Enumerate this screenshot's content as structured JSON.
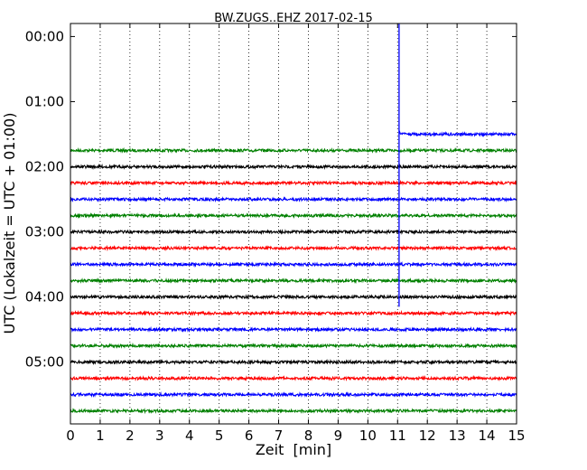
{
  "chart_data": {
    "type": "line",
    "title": "BW.ZUGS..EHZ 2017-02-15",
    "xlabel": "Zeit  [min]",
    "ylabel": "UTC (Lokalzeit = UTC + 01:00)",
    "xlim": [
      0,
      15
    ],
    "ylim_hours": [
      5.95,
      -0.2
    ],
    "x_ticks": [
      0,
      1,
      2,
      3,
      4,
      5,
      6,
      7,
      8,
      9,
      10,
      11,
      12,
      13,
      14,
      15
    ],
    "x_tick_labels": [
      "0",
      "1",
      "2",
      "3",
      "4",
      "5",
      "6",
      "7",
      "8",
      "9",
      "10",
      "11",
      "12",
      "13",
      "14",
      "15"
    ],
    "y_ticks": [
      "00:00",
      "01:00",
      "02:00",
      "03:00",
      "04:00",
      "05:00"
    ],
    "grid": "vertical-dotted",
    "colors": {
      "green": "#008000",
      "black": "#000000",
      "red": "#ff0000",
      "blue": "#0000ff"
    },
    "partial_trace": {
      "row_hour": 1.5,
      "x_start": 11.1,
      "x_end": 15,
      "color": "blue"
    },
    "traces": [
      {
        "row_hour": 1.75,
        "color": "green"
      },
      {
        "row_hour": 2.0,
        "color": "black"
      },
      {
        "row_hour": 2.25,
        "color": "red"
      },
      {
        "row_hour": 2.5,
        "color": "blue"
      },
      {
        "row_hour": 2.75,
        "color": "green"
      },
      {
        "row_hour": 3.0,
        "color": "black"
      },
      {
        "row_hour": 3.25,
        "color": "red"
      },
      {
        "row_hour": 3.5,
        "color": "blue"
      },
      {
        "row_hour": 3.75,
        "color": "green"
      },
      {
        "row_hour": 4.0,
        "color": "black"
      },
      {
        "row_hour": 4.25,
        "color": "red"
      },
      {
        "row_hour": 4.5,
        "color": "blue"
      },
      {
        "row_hour": 4.75,
        "color": "green"
      },
      {
        "row_hour": 5.0,
        "color": "black"
      },
      {
        "row_hour": 5.25,
        "color": "red"
      },
      {
        "row_hour": 5.5,
        "color": "blue"
      },
      {
        "row_hour": 5.75,
        "color": "green"
      }
    ],
    "event": {
      "x": 11.05,
      "hour_top": -0.2,
      "hour_bottom": 4.15,
      "color": "blue"
    }
  }
}
